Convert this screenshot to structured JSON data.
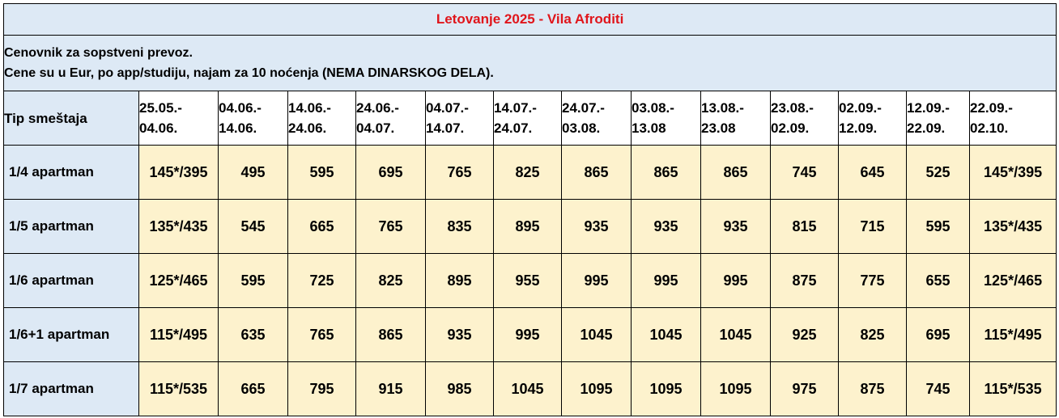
{
  "title": "Letovanje 2025 - Vila Afroditi",
  "notes": [
    "Cenovnik za sopstveni prevoz.",
    "Cene su u Eur, po app/studiju, najam za 10 noćenja (NEMA DINARSKOG DELA)."
  ],
  "header": {
    "type_label": "Tip smeštaja",
    "periods": [
      {
        "from": "25.05.-",
        "to": "04.06."
      },
      {
        "from": "04.06.-",
        "to": "14.06."
      },
      {
        "from": "14.06.-",
        "to": "24.06."
      },
      {
        "from": "24.06.-",
        "to": "04.07."
      },
      {
        "from": "04.07.-",
        "to": "14.07."
      },
      {
        "from": "14.07.-",
        "to": "24.07."
      },
      {
        "from": "24.07.-",
        "to": "03.08."
      },
      {
        "from": "03.08.-",
        "to": "13.08"
      },
      {
        "from": "13.08.-",
        "to": "23.08"
      },
      {
        "from": "23.08.-",
        "to": "02.09."
      },
      {
        "from": "02.09.-",
        "to": "12.09."
      },
      {
        "from": "12.09.-",
        "to": "22.09."
      },
      {
        "from": "22.09.-",
        "to": "02.10."
      }
    ]
  },
  "rows": [
    {
      "label": "1/4 apartman",
      "prices": [
        "145*/395",
        "495",
        "595",
        "695",
        "765",
        "825",
        "865",
        "865",
        "865",
        "745",
        "645",
        "525",
        "145*/395"
      ]
    },
    {
      "label": "1/5 apartman",
      "prices": [
        "135*/435",
        "545",
        "665",
        "765",
        "835",
        "895",
        "935",
        "935",
        "935",
        "815",
        "715",
        "595",
        "135*/435"
      ]
    },
    {
      "label": "1/6 apartman",
      "prices": [
        "125*/465",
        "595",
        "725",
        "825",
        "895",
        "955",
        "995",
        "995",
        "995",
        "875",
        "775",
        "655",
        "125*/465"
      ]
    },
    {
      "label": "1/6+1 apartman",
      "prices": [
        "115*/495",
        "635",
        "765",
        "865",
        "935",
        "995",
        "1045",
        "1045",
        "1045",
        "925",
        "825",
        "695",
        "115*/495"
      ]
    },
    {
      "label": "1/7 apartman",
      "prices": [
        "115*/535",
        "665",
        "795",
        "915",
        "985",
        "1045",
        "1095",
        "1095",
        "1095",
        "975",
        "875",
        "745",
        "115*/535"
      ]
    }
  ],
  "colors": {
    "title_text": "#e0151b",
    "header_bg": "#dde9f5",
    "price_bg": "#fdf2cd"
  }
}
